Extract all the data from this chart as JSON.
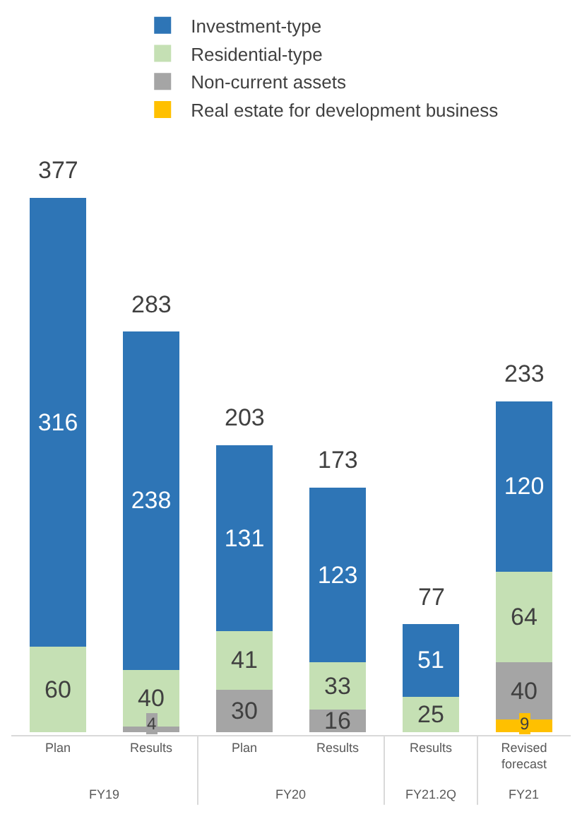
{
  "chart_data": {
    "type": "bar",
    "stacked": true,
    "data_labels": true,
    "legend": "top",
    "categories": [
      "Plan",
      "Results",
      "Plan",
      "Results",
      "Results",
      "Revised forecast"
    ],
    "annotations": [
      "FY19",
      "FY20",
      "FY21.2Q",
      "FY21"
    ],
    "series": [
      {
        "name": "Real estate for development business",
        "color": "#ffc000",
        "values": [
          null,
          null,
          null,
          null,
          null,
          9
        ]
      },
      {
        "name": "Non-current assets",
        "color": "#a5a5a5",
        "values": [
          null,
          4,
          30,
          16,
          null,
          40
        ]
      },
      {
        "name": "Residential-type",
        "color": "#c5e0b4",
        "values": [
          60,
          40,
          41,
          33,
          25,
          64
        ]
      },
      {
        "name": "Investment-type",
        "color": "#2e75b6",
        "values": [
          316,
          238,
          131,
          123,
          51,
          120
        ]
      }
    ],
    "totals": [
      "377",
      "283",
      "203",
      "173",
      "77",
      "233"
    ]
  }
}
